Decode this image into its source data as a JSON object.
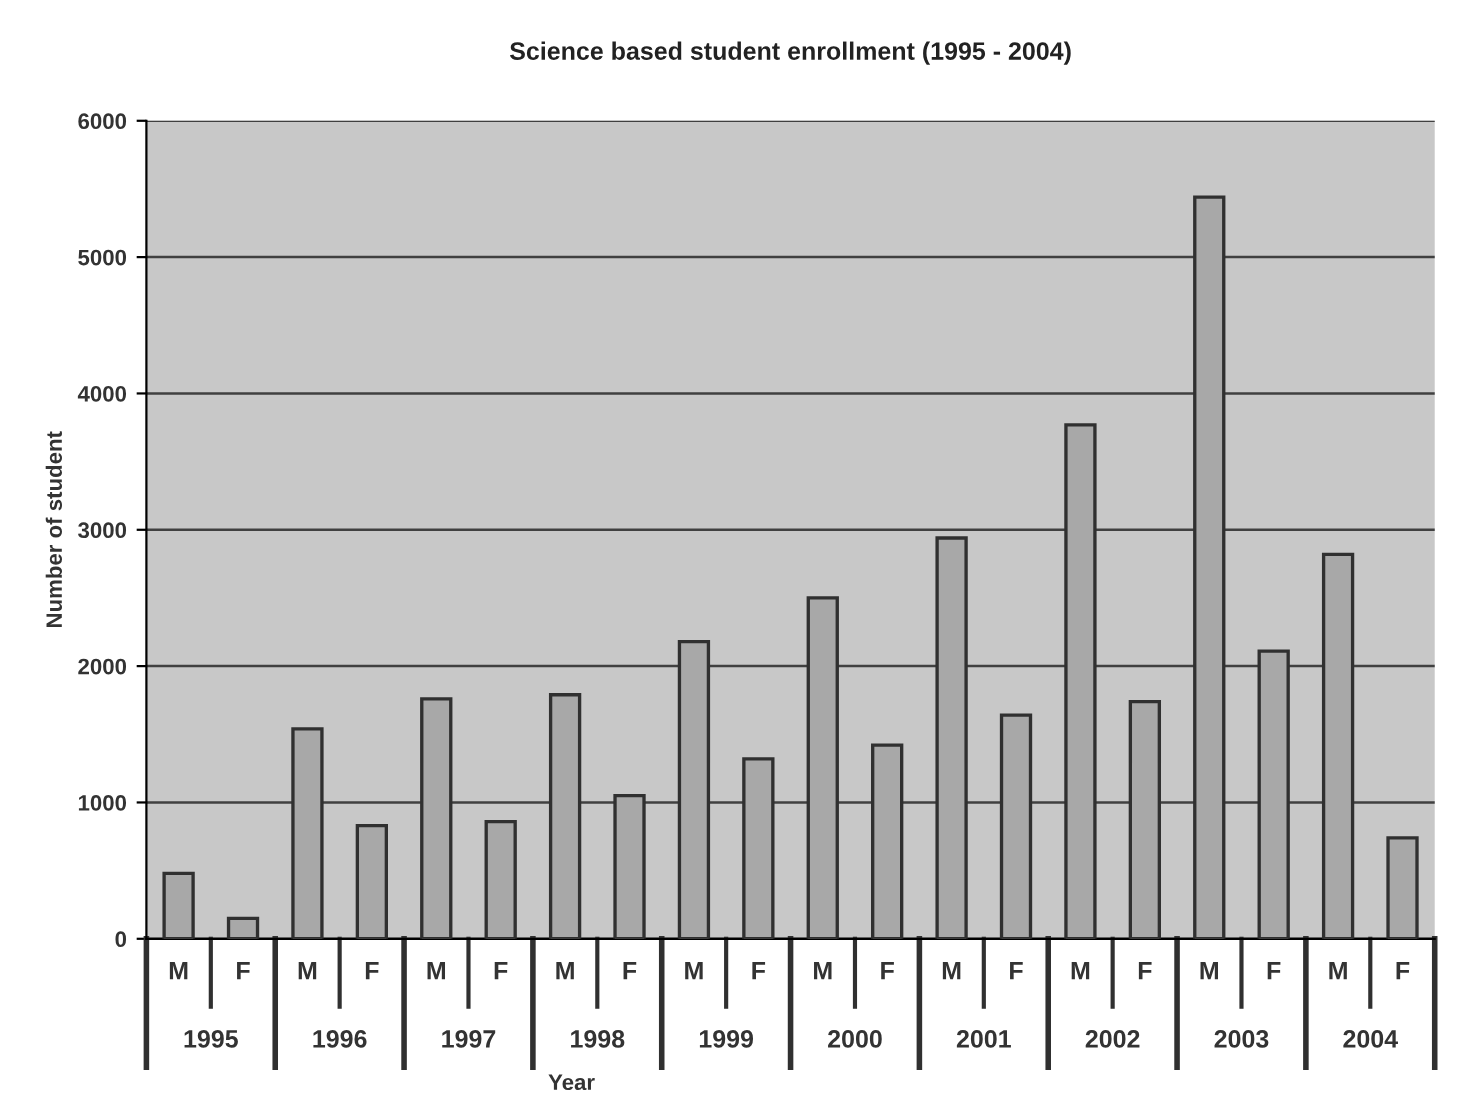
{
  "chart_data": {
    "type": "bar",
    "title": "Science based student enrollment (1995 - 2004)",
    "xlabel": "Year",
    "ylabel": "Number of student",
    "categories": [
      "M",
      "F",
      "M",
      "F",
      "M",
      "F",
      "M",
      "F",
      "M",
      "F",
      "M",
      "F",
      "M",
      "F",
      "M",
      "F",
      "M",
      "F",
      "M",
      "F"
    ],
    "values": [
      480,
      150,
      1540,
      830,
      1760,
      860,
      1790,
      1050,
      2180,
      1320,
      2500,
      1420,
      2940,
      1640,
      3770,
      1740,
      5440,
      2110,
      2820,
      740
    ],
    "color": "#a8a8a8",
    "annotations": [
      "1995",
      "1996",
      "1997",
      "1998",
      "1999",
      "2000",
      "2001",
      "2002",
      "2003",
      "2004"
    ],
    "ylim": [
      0,
      6000
    ],
    "yticks": [
      0,
      1000,
      2000,
      3000,
      4000,
      5000,
      6000
    ],
    "grid": "y"
  }
}
